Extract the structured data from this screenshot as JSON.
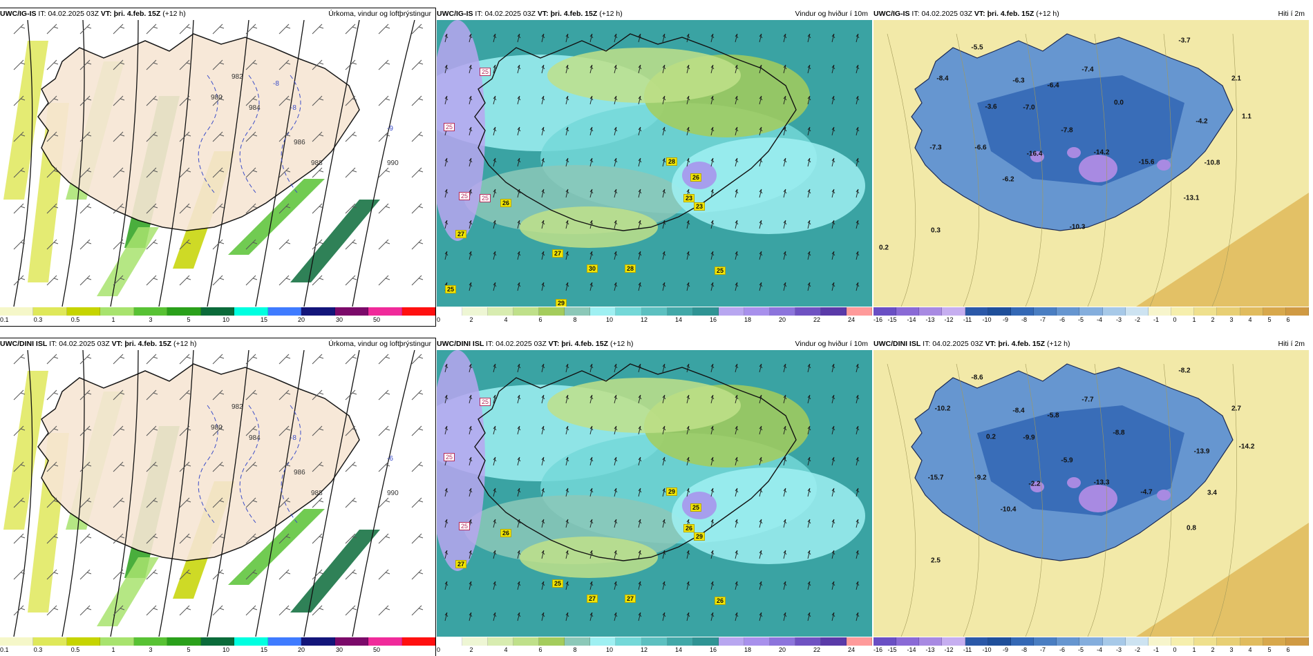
{
  "panels": [
    {
      "id": "p1",
      "model": "UWC/IG-IS",
      "it_label": "IT:",
      "it": "04.02.2025 03Z",
      "vt_label": "VT:",
      "vt": "þri. 4.feb. 15Z",
      "lead": "(+12 h)",
      "product": "Úrkoma, vindur og loftþrýstingur",
      "kind": "precip",
      "colorbar": {
        "colors": [
          "#f5f7c9",
          "#dfe85a",
          "#c6d400",
          "#a8e36e",
          "#58c234",
          "#2aa01b",
          "#0b6b3a",
          "#00ffe0",
          "#3f7bff",
          "#13157a",
          "#7b0a6a",
          "#f02a9a",
          "#ff1010"
        ],
        "labels": [
          "0.1",
          "0.3",
          "0.5",
          "1",
          "3",
          "5",
          "10",
          "15",
          "20",
          "30",
          "50"
        ]
      },
      "labels": {
        "pressure": [
          "980",
          "982",
          "984",
          "986",
          "988",
          "990",
          "-8",
          "-9",
          "-8"
        ]
      },
      "boxes": []
    },
    {
      "id": "p2",
      "model": "UWC/IG-IS",
      "it_label": "IT:",
      "it": "04.02.2025 03Z",
      "vt_label": "VT:",
      "vt": "þri. 4.feb. 15Z",
      "lead": "(+12 h)",
      "product": "Vindur og hviður í 10m",
      "kind": "wind",
      "colorbar": {
        "colors": [
          "#ffffff",
          "#eef6d4",
          "#d8ecb0",
          "#bfe08a",
          "#a4cc5c",
          "#8cc8b8",
          "#9ff0f2",
          "#74d8d8",
          "#5cc0c0",
          "#41a8a8",
          "#2f9494",
          "#b8a6f0",
          "#a890ec",
          "#8c74dc",
          "#6f52c2",
          "#5a3aa8",
          "#ff9a9a"
        ],
        "labels": [
          "0",
          "2",
          "4",
          "6",
          "8",
          "10",
          "12",
          "14",
          "16",
          "18",
          "20",
          "22",
          "24"
        ]
      },
      "labels": {
        "gust_yellow": [
          "28",
          "26",
          "23",
          "23",
          "26",
          "27",
          "28",
          "25",
          "30",
          "27",
          "29",
          "25"
        ],
        "gust_pink": [
          "25",
          "25",
          "25",
          "25"
        ]
      },
      "boxes": []
    },
    {
      "id": "p3",
      "model": "UWC/IG-IS",
      "it_label": "IT:",
      "it": "04.02.2025 03Z",
      "vt_label": "VT:",
      "vt": "þri. 4.feb. 15Z",
      "lead": "(+12 h)",
      "product": "Hiti í 2m",
      "kind": "temp",
      "colorbar": {
        "colors": [
          "#6a4fc4",
          "#8a6ad6",
          "#a88ae2",
          "#c6aef0",
          "#2b58a8",
          "#1f4f9a",
          "#3468b5",
          "#4a7ec2",
          "#6696d0",
          "#84aedd",
          "#a7c9e8",
          "#cde3f1",
          "#f7f5cc",
          "#f6efad",
          "#efe08d",
          "#e8cf74",
          "#e1bc5e",
          "#d8a84c",
          "#d09a43"
        ],
        "labels": [
          "-16",
          "-15",
          "-14",
          "-13",
          "-12",
          "-11",
          "-10",
          "-9",
          "-8",
          "-7",
          "-6",
          "-5",
          "-4",
          "-3",
          "-2",
          "-1",
          "0",
          "1",
          "2",
          "3",
          "4",
          "5",
          "6"
        ]
      },
      "labels": {
        "temps": [
          "-5.5",
          "-3.7",
          "-8.4",
          "-6.3",
          "-6.4",
          "-7.4",
          "2.1",
          "-3.6",
          "-7.0",
          "0.0",
          "-7.8",
          "-4.2",
          "1.1",
          "-7.3",
          "-6.6",
          "-16.4",
          "-14.2",
          "-15.6",
          "-10.8",
          "-6.2",
          "-13.1",
          "0.3",
          "-10.3",
          "0.2"
        ]
      },
      "boxes": []
    },
    {
      "id": "p4",
      "model": "UWC/DINI ISL",
      "it_label": "IT:",
      "it": "04.02.2025 03Z",
      "vt_label": "VT:",
      "vt": "þri. 4.feb. 15Z",
      "lead": "(+12 h)",
      "product": "Úrkoma, vindur og loftþrýstingur",
      "kind": "precip",
      "colorbar": {
        "colors": [
          "#f5f7c9",
          "#dfe85a",
          "#c6d400",
          "#a8e36e",
          "#58c234",
          "#2aa01b",
          "#0b6b3a",
          "#00ffe0",
          "#3f7bff",
          "#13157a",
          "#7b0a6a",
          "#f02a9a",
          "#ff1010"
        ],
        "labels": [
          "0.1",
          "0.3",
          "0.5",
          "1",
          "3",
          "5",
          "10",
          "15",
          "20",
          "30",
          "50"
        ]
      },
      "labels": {
        "pressure": [
          "980",
          "982",
          "984",
          "986",
          "988",
          "990",
          "-8",
          "-6"
        ]
      },
      "boxes": []
    },
    {
      "id": "p5",
      "model": "UWC/DINI ISL",
      "it_label": "IT:",
      "it": "04.02.2025 03Z",
      "vt_label": "VT:",
      "vt": "þri. 4.feb. 15Z",
      "lead": "(+12 h)",
      "product": "Vindur og hviður í 10m",
      "kind": "wind",
      "colorbar": {
        "colors": [
          "#ffffff",
          "#eef6d4",
          "#d8ecb0",
          "#bfe08a",
          "#a4cc5c",
          "#8cc8b8",
          "#9ff0f2",
          "#74d8d8",
          "#5cc0c0",
          "#41a8a8",
          "#2f9494",
          "#b8a6f0",
          "#a890ec",
          "#8c74dc",
          "#6f52c2",
          "#5a3aa8",
          "#ff9a9a"
        ],
        "labels": [
          "0",
          "2",
          "4",
          "6",
          "8",
          "10",
          "12",
          "14",
          "16",
          "18",
          "20",
          "22",
          "24"
        ]
      },
      "labels": {
        "gust_yellow": [
          "29",
          "25",
          "26",
          "29",
          "26",
          "27",
          "27",
          "26",
          "27",
          "25"
        ],
        "gust_pink": [
          "25",
          "25",
          "25"
        ]
      },
      "boxes": []
    },
    {
      "id": "p6",
      "model": "UWC/DINI ISL",
      "it_label": "IT:",
      "it": "04.02.2025 03Z",
      "vt_label": "VT:",
      "vt": "þri. 4.feb. 15Z",
      "lead": "(+12 h)",
      "product": "Hiti í 2m",
      "kind": "temp",
      "colorbar": {
        "colors": [
          "#6a4fc4",
          "#8a6ad6",
          "#a88ae2",
          "#c6aef0",
          "#2b58a8",
          "#1f4f9a",
          "#3468b5",
          "#4a7ec2",
          "#6696d0",
          "#84aedd",
          "#a7c9e8",
          "#cde3f1",
          "#f7f5cc",
          "#f6efad",
          "#efe08d",
          "#e8cf74",
          "#e1bc5e",
          "#d8a84c",
          "#d09a43"
        ],
        "labels": [
          "-16",
          "-15",
          "-14",
          "-13",
          "-12",
          "-11",
          "-10",
          "-9",
          "-8",
          "-7",
          "-6",
          "-5",
          "-4",
          "-3",
          "-2",
          "-1",
          "0",
          "1",
          "2",
          "3",
          "4",
          "5",
          "6"
        ]
      },
      "labels": {
        "temps": [
          "-8.6",
          "-8.2",
          "-10.2",
          "-8.4",
          "-5.8",
          "-7.7",
          "2.7",
          "0.2",
          "-9.9",
          "-8.8",
          "-5.9",
          "-13.9",
          "-14.2",
          "-15.7",
          "-9.2",
          "-2.2",
          "-13.3",
          "-4.7",
          "3.4",
          "-10.4",
          "0.8",
          "2.5"
        ]
      },
      "boxes": []
    }
  ]
}
